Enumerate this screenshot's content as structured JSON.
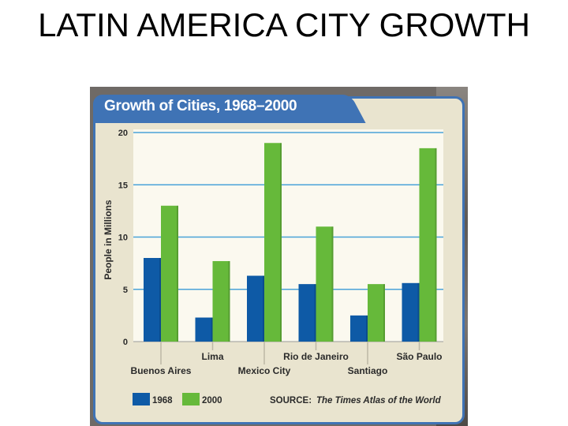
{
  "slide": {
    "title": "LATIN AMERICA CITY GROWTH"
  },
  "chart_data": {
    "type": "bar",
    "title": "Growth of Cities, 1968–2000",
    "xlabel": "",
    "ylabel": "People in Millions",
    "ylim": [
      0,
      20
    ],
    "yticks": [
      "0",
      "5",
      "10",
      "15",
      "20"
    ],
    "categories": [
      "Buenos Aires",
      "Lima",
      "Mexico City",
      "Rio de Janeiro",
      "Santiago",
      "São Paulo"
    ],
    "series": [
      {
        "name": "1968",
        "color": "#0e5aa6",
        "values": [
          8.0,
          2.3,
          6.3,
          5.5,
          2.5,
          5.6
        ]
      },
      {
        "name": "2000",
        "color": "#66b93a",
        "values": [
          13.0,
          7.7,
          19.0,
          11.0,
          5.5,
          18.5
        ]
      }
    ],
    "grid": true,
    "legend_placement": "bottom-left",
    "source_prefix": "SOURCE:",
    "source_title": "The Times Atlas of the World"
  }
}
